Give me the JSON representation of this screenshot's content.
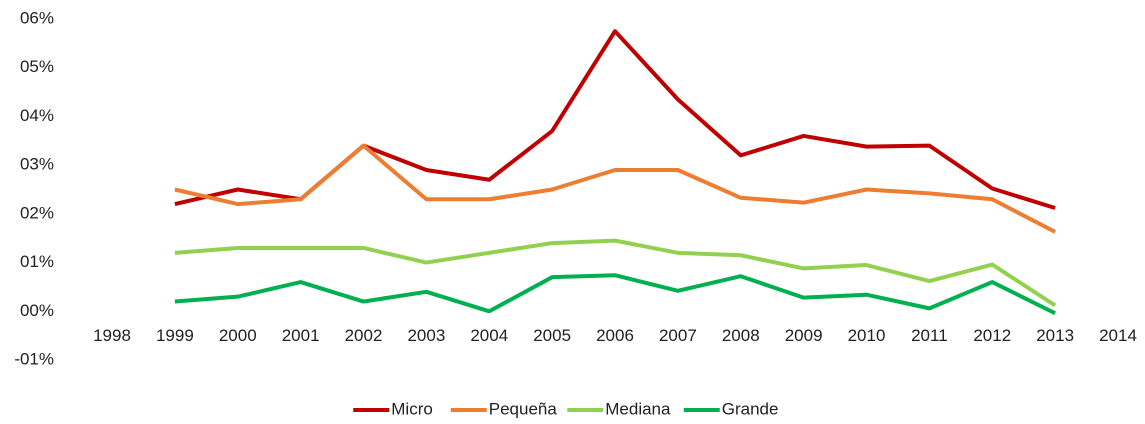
{
  "chart_data": {
    "type": "line",
    "categories": [
      "1998",
      "1999",
      "2000",
      "2001",
      "2002",
      "2003",
      "2004",
      "2005",
      "2006",
      "2007",
      "2008",
      "2009",
      "2010",
      "2011",
      "2012",
      "2013",
      "2014"
    ],
    "series": [
      {
        "name": "Micro",
        "color": "#c00000",
        "values": [
          null,
          2.2,
          2.5,
          2.3,
          3.4,
          2.9,
          2.7,
          3.7,
          5.75,
          4.35,
          3.2,
          3.6,
          3.38,
          3.4,
          2.52,
          2.12,
          null
        ]
      },
      {
        "name": "Pequeña",
        "color": "#ed7d31",
        "values": [
          null,
          2.5,
          2.2,
          2.3,
          3.4,
          2.3,
          2.3,
          2.5,
          2.9,
          2.9,
          2.33,
          2.23,
          2.5,
          2.42,
          2.3,
          1.63,
          null
        ]
      },
      {
        "name": "Mediana",
        "color": "#92d050",
        "values": [
          null,
          1.2,
          1.3,
          1.3,
          1.3,
          1.0,
          1.2,
          1.4,
          1.45,
          1.2,
          1.15,
          0.88,
          0.95,
          0.62,
          0.96,
          0.12,
          null
        ]
      },
      {
        "name": "Grande",
        "color": "#00b050",
        "values": [
          null,
          0.2,
          0.3,
          0.6,
          0.2,
          0.4,
          0.0,
          0.7,
          0.74,
          0.42,
          0.72,
          0.28,
          0.34,
          0.06,
          0.6,
          -0.04,
          null
        ]
      }
    ],
    "ylim": [
      -1,
      6
    ],
    "yticks": [
      {
        "value": -1,
        "label": "-01%"
      },
      {
        "value": 0,
        "label": "00%"
      },
      {
        "value": 1,
        "label": "01%"
      },
      {
        "value": 2,
        "label": "02%"
      },
      {
        "value": 3,
        "label": "03%"
      },
      {
        "value": 4,
        "label": "04%"
      },
      {
        "value": 5,
        "label": "05%"
      },
      {
        "value": 6,
        "label": "06%"
      }
    ],
    "grid": false,
    "legend": "bottom"
  }
}
